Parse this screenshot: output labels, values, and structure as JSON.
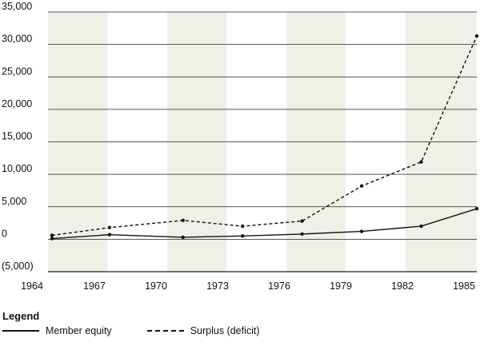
{
  "chart_data": {
    "type": "line",
    "title": "",
    "xlabel": "",
    "ylabel": "",
    "x_ticks": [
      "1964",
      "1967",
      "1970",
      "1973",
      "1976",
      "1979",
      "1982",
      "1985"
    ],
    "y_ticks": [
      {
        "value": 35000,
        "label": "35,000"
      },
      {
        "value": 30000,
        "label": "30,000"
      },
      {
        "value": 25000,
        "label": "25,000"
      },
      {
        "value": 20000,
        "label": "20,000"
      },
      {
        "value": 15000,
        "label": "15,000"
      },
      {
        "value": 10000,
        "label": "10,000"
      },
      {
        "value": 5000,
        "label": "5,000"
      },
      {
        "value": 0,
        "label": "0"
      },
      {
        "value": -5000,
        "label": "(5,000)"
      }
    ],
    "xlim": [
      1964,
      1985.6
    ],
    "ylim": [
      -5000,
      35000
    ],
    "shaded_bands": [
      [
        1964,
        1967
      ],
      [
        1970,
        1973
      ],
      [
        1976,
        1979
      ],
      [
        1982,
        1985.6
      ]
    ],
    "band_color": "#f1f0e8",
    "line_color": "#111111",
    "grid": "horizontal",
    "legend_position": "bottom-left",
    "series": [
      {
        "name": "Member equity",
        "style": "solid",
        "x": [
          1964.2,
          1967.1,
          1970.8,
          1973.8,
          1976.8,
          1979.8,
          1982.8,
          1985.6
        ],
        "y": [
          100,
          700,
          300,
          500,
          800,
          1200,
          2000,
          4700
        ]
      },
      {
        "name": "Surplus (deficit)",
        "style": "dashed",
        "x": [
          1964.2,
          1967.1,
          1970.8,
          1973.8,
          1976.8,
          1979.8,
          1982.8,
          1985.6
        ],
        "y": [
          600,
          1800,
          2900,
          2000,
          2800,
          8200,
          11900,
          31300
        ]
      }
    ]
  },
  "legend": {
    "title": "Legend",
    "items": [
      "Member equity",
      "Surplus (deficit)"
    ]
  }
}
